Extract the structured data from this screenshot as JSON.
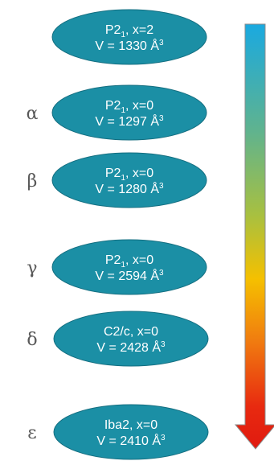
{
  "phases": [
    {
      "label": "",
      "line1": "P2",
      "line1_sub": "1",
      "line1_rest": ", x=2",
      "line2": "V = 1330 Å",
      "line2_sup": "3"
    },
    {
      "label": "α",
      "line1": "P2",
      "line1_sub": "1",
      "line1_rest": ", x=0",
      "line2": "V = 1297 Å",
      "line2_sup": "3"
    },
    {
      "label": "β",
      "line1": "P2",
      "line1_sub": "1",
      "line1_rest": ", x=0",
      "line2": "V = 1280 Å",
      "line2_sup": "3"
    },
    {
      "label": "γ",
      "line1": "P2",
      "line1_sub": "1",
      "line1_rest": ", x=0",
      "line2": "V = 2594 Å",
      "line2_sup": "3"
    },
    {
      "label": "δ",
      "line1": "C2/c",
      "line1_sub": "",
      "line1_rest": ", x=0",
      "line2": "V = 2428 Å",
      "line2_sup": "3"
    },
    {
      "label": "ε",
      "line1": "Iba2",
      "line1_sub": "",
      "line1_rest": ", x=0",
      "line2": "V = 2410 Å",
      "line2_sup": "3"
    }
  ],
  "colors": {
    "ellipse_fill": "#1b8fa5",
    "ellipse_stroke": "#146e80",
    "gradient_stops": [
      "#1aa9e0",
      "#5fb38f",
      "#a8c040",
      "#f5c000",
      "#f07a10",
      "#e82a10",
      "#e01a10"
    ],
    "arrow_outline": "#8c8c8c"
  },
  "icons": {
    "arrow": "down-arrow-gradient"
  }
}
